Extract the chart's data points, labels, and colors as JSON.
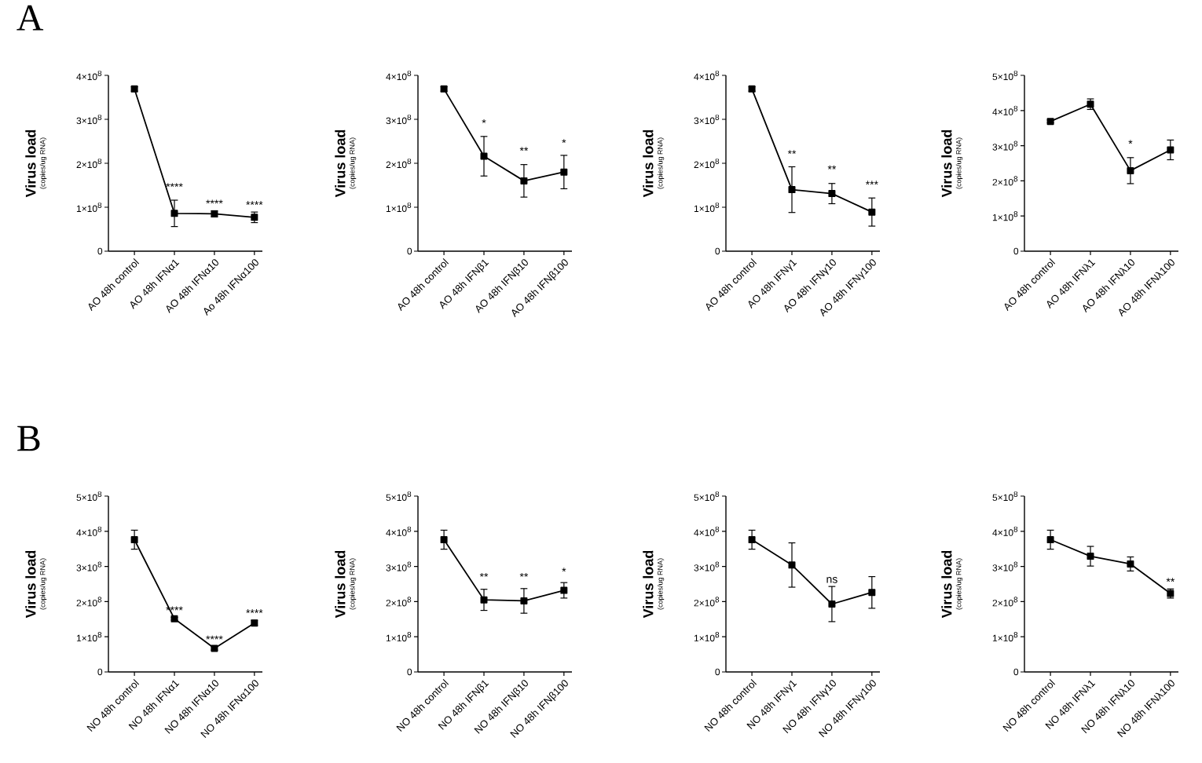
{
  "chart_data": [
    {
      "type": "line",
      "title": "A",
      "ylabel": "Virus load",
      "categories": [
        "AO 48h control",
        "AO 48h IFNα1",
        "AO 48h IFNα10",
        "Ao 48h IFNα100"
      ],
      "values": [
        369000000.0,
        86000000.0,
        85000000.0,
        77000000.0
      ],
      "errors": [
        5000000.0,
        30000000.0,
        7000000.0,
        12000000.0
      ],
      "color": "#000000",
      "marker": "square",
      "ylim": [
        0,
        400000000.0
      ],
      "yticks": [
        0,
        {
          "value": 100000000.0,
          "label": "1×10$^{8}$"
        },
        {
          "value": 200000000.0,
          "label": "2×10$^{8}$"
        },
        {
          "value": 300000000.0,
          "label": "3×10$^{8}$"
        },
        {
          "value": 400000000.0,
          "label": "4×10$^{8}$"
        }
      ],
      "grid": false,
      "annotations": [
        "(copies/ug RNA)",
        {
          "text": "****",
          "x": "AO 48h IFNα1",
          "y": 130000000.0
        },
        {
          "text": "****",
          "x": "AO 48h IFNα10",
          "y": 92000000.0
        },
        {
          "text": "****",
          "x": "Ao 48h IFNα100",
          "y": 89000000.0
        }
      ]
    },
    {
      "type": "line",
      "ylabel": "Virus load",
      "categories": [
        "AO 48h control",
        "AO 48h IFNβ1",
        "AO 48h IFNβ10",
        "AO 48h IFNβ100"
      ],
      "values": [
        369000000.0,
        216000000.0,
        160000000.0,
        180000000.0
      ],
      "errors": [
        5000000.0,
        45000000.0,
        37000000.0,
        38000000.0
      ],
      "color": "#000000",
      "marker": "square",
      "ylim": [
        0,
        400000000.0
      ],
      "yticks": [
        0,
        {
          "value": 100000000.0,
          "label": "1×10$^{8}$"
        },
        {
          "value": 200000000.0,
          "label": "2×10$^{8}$"
        },
        {
          "value": 300000000.0,
          "label": "3×10$^{8}$"
        },
        {
          "value": 400000000.0,
          "label": "4×10$^{8}$"
        }
      ],
      "grid": false,
      "annotations": [
        "(copies/ug RNA)",
        {
          "text": "*",
          "x": "AO 48h IFNβ1",
          "y": 275000000.0
        },
        {
          "text": "**",
          "x": "AO 48h IFNβ10",
          "y": 212000000.0
        },
        {
          "text": "*",
          "x": "AO 48h IFNβ100",
          "y": 230000000.0
        }
      ]
    },
    {
      "type": "line",
      "ylabel": "Virus load",
      "categories": [
        "AO 48h control",
        "AO 48h IFNγ1",
        "AO 48h IFNγ10",
        "AO 48h IFNγ100"
      ],
      "values": [
        369000000.0,
        140000000.0,
        131000000.0,
        89000000.0
      ],
      "errors": [
        5000000.0,
        52000000.0,
        23000000.0,
        32000000.0
      ],
      "color": "#000000",
      "marker": "square",
      "ylim": [
        0,
        400000000.0
      ],
      "yticks": [
        0,
        {
          "value": 100000000.0,
          "label": "1×10$^{8}$"
        },
        {
          "value": 200000000.0,
          "label": "2×10$^{8}$"
        },
        {
          "value": 300000000.0,
          "label": "3×10$^{8}$"
        },
        {
          "value": 400000000.0,
          "label": "4×10$^{8}$"
        }
      ],
      "grid": false,
      "annotations": [
        "(copies/ug RNA)",
        {
          "text": "**",
          "x": "AO 48h IFNγ1",
          "y": 205000000.0
        },
        {
          "text": "**",
          "x": "AO 48h IFNγ10",
          "y": 170000000.0
        },
        {
          "text": "***",
          "x": "AO 48h IFNγ100",
          "y": 135000000.0
        }
      ]
    },
    {
      "type": "line",
      "ylabel": "Virus load",
      "categories": [
        "AO 48h control",
        "AO 48h IFNλ1",
        "AO 48h IFNλ10",
        "AO 48h IFNλ100"
      ],
      "values": [
        369000000.0,
        418000000.0,
        229000000.0,
        288000000.0
      ],
      "errors": [
        4000000.0,
        15000000.0,
        37000000.0,
        28000000.0
      ],
      "color": "#000000",
      "marker": "square",
      "ylim": [
        0,
        500000000.0
      ],
      "yticks": [
        0,
        {
          "value": 100000000.0,
          "label": "1×10$^{8}$"
        },
        {
          "value": 200000000.0,
          "label": "2×10$^{8}$"
        },
        {
          "value": 300000000.0,
          "label": "3×10$^{8}$"
        },
        {
          "value": 400000000.0,
          "label": "4×10$^{8}$"
        },
        {
          "value": 500000000.0,
          "label": "5×10$^{8}$"
        }
      ],
      "grid": false,
      "annotations": [
        "(copies/ug RNA)",
        {
          "text": "*",
          "x": "AO 48h IFNλ10",
          "y": 285000000.0
        }
      ]
    },
    {
      "type": "line",
      "title": "B",
      "ylabel": "Virus load",
      "categories": [
        "NO 48h control",
        "NO 48h IFNα1",
        "NO 48h IFNα10",
        "NO 48h IFNα100"
      ],
      "values": [
        376000000.0,
        151000000.0,
        67000000.0,
        139000000.0
      ],
      "errors": [
        27000000.0,
        4000000.0,
        5000000.0,
        8000000.0
      ],
      "color": "#000000",
      "marker": "square",
      "ylim": [
        0,
        500000000.0
      ],
      "yticks": [
        0,
        {
          "value": 100000000.0,
          "label": "1×10$^{8}$"
        },
        {
          "value": 200000000.0,
          "label": "2×10$^{8}$"
        },
        {
          "value": 300000000.0,
          "label": "3×10$^{8}$"
        },
        {
          "value": 400000000.0,
          "label": "4×10$^{8}$"
        },
        {
          "value": 500000000.0,
          "label": "5×10$^{8}$"
        }
      ],
      "grid": false,
      "annotations": [
        "(copies/ug RNA)",
        {
          "text": "****",
          "x": "NO 48h IFNα1",
          "y": 155000000.0
        },
        {
          "text": "****",
          "x": "NO 48h IFNα10",
          "y": 72000000.0
        },
        {
          "text": "****",
          "x": "NO 48h IFNα100",
          "y": 147000000.0
        }
      ]
    },
    {
      "type": "line",
      "ylabel": "Virus load",
      "categories": [
        "NO 48h control",
        "NO 48h IFNβ1",
        "NO 48h IFNβ10",
        "NO 48h IFNβ100"
      ],
      "values": [
        376000000.0,
        205000000.0,
        202000000.0,
        232000000.0
      ],
      "errors": [
        27000000.0,
        30000000.0,
        35000000.0,
        22000000.0
      ],
      "color": "#000000",
      "marker": "square",
      "ylim": [
        0,
        500000000.0
      ],
      "yticks": [
        0,
        {
          "value": 100000000.0,
          "label": "1×10$^{8}$"
        },
        {
          "value": 200000000.0,
          "label": "2×10$^{8}$"
        },
        {
          "value": 300000000.0,
          "label": "3×10$^{8}$"
        },
        {
          "value": 400000000.0,
          "label": "4×10$^{8}$"
        },
        {
          "value": 500000000.0,
          "label": "5×10$^{8}$"
        }
      ],
      "grid": false,
      "annotations": [
        "(copies/ug RNA)",
        {
          "text": "**",
          "x": "NO 48h IFNβ1",
          "y": 250000000.0
        },
        {
          "text": "**",
          "x": "NO 48h IFNβ10",
          "y": 250000000.0
        },
        {
          "text": "*",
          "x": "NO 48h IFNβ100",
          "y": 265000000.0
        }
      ]
    },
    {
      "type": "line",
      "ylabel": "Virus load",
      "categories": [
        "NO 48h control",
        "NO 48h IFNγ1",
        "NO 48h IFNγ10",
        "NO 48h IFNγ100"
      ],
      "values": [
        376000000.0,
        304000000.0,
        193000000.0,
        226000000.0
      ],
      "errors": [
        27000000.0,
        63000000.0,
        50000000.0,
        45000000.0
      ],
      "color": "#000000",
      "marker": "square",
      "ylim": [
        0,
        500000000.0
      ],
      "yticks": [
        0,
        {
          "value": 100000000.0,
          "label": "1×10$^{8}$"
        },
        {
          "value": 200000000.0,
          "label": "2×10$^{8}$"
        },
        {
          "value": 300000000.0,
          "label": "3×10$^{8}$"
        },
        {
          "value": 400000000.0,
          "label": "4×10$^{8}$"
        },
        {
          "value": 500000000.0,
          "label": "5×10$^{8}$"
        }
      ],
      "grid": false,
      "annotations": [
        "(copies/ug RNA)",
        {
          "text": "ns",
          "x": "NO 48h IFNγ10",
          "y": 243000000.0
        }
      ]
    },
    {
      "type": "line",
      "ylabel": "Virus load",
      "categories": [
        "NO 48h control",
        "NO 48h IFNλ1",
        "NO 48h IFNλ10",
        "NO 48h IFNλ100"
      ],
      "values": [
        376000000.0,
        329000000.0,
        307000000.0,
        223000000.0
      ],
      "errors": [
        27000000.0,
        28000000.0,
        20000000.0,
        13000000.0
      ],
      "color": "#000000",
      "marker": "square",
      "ylim": [
        0,
        500000000.0
      ],
      "yticks": [
        0,
        {
          "value": 100000000.0,
          "label": "1×10$^{8}$"
        },
        {
          "value": 200000000.0,
          "label": "2×10$^{8}$"
        },
        {
          "value": 300000000.0,
          "label": "3×10$^{8}$"
        },
        {
          "value": 400000000.0,
          "label": "4×10$^{8}$"
        },
        {
          "value": 500000000.0,
          "label": "5×10$^{8}$"
        }
      ],
      "grid": false,
      "annotations": [
        "(copies/ug RNA)",
        {
          "text": "**",
          "x": "NO 48h IFNλ100",
          "y": 236000000.0
        }
      ]
    }
  ]
}
